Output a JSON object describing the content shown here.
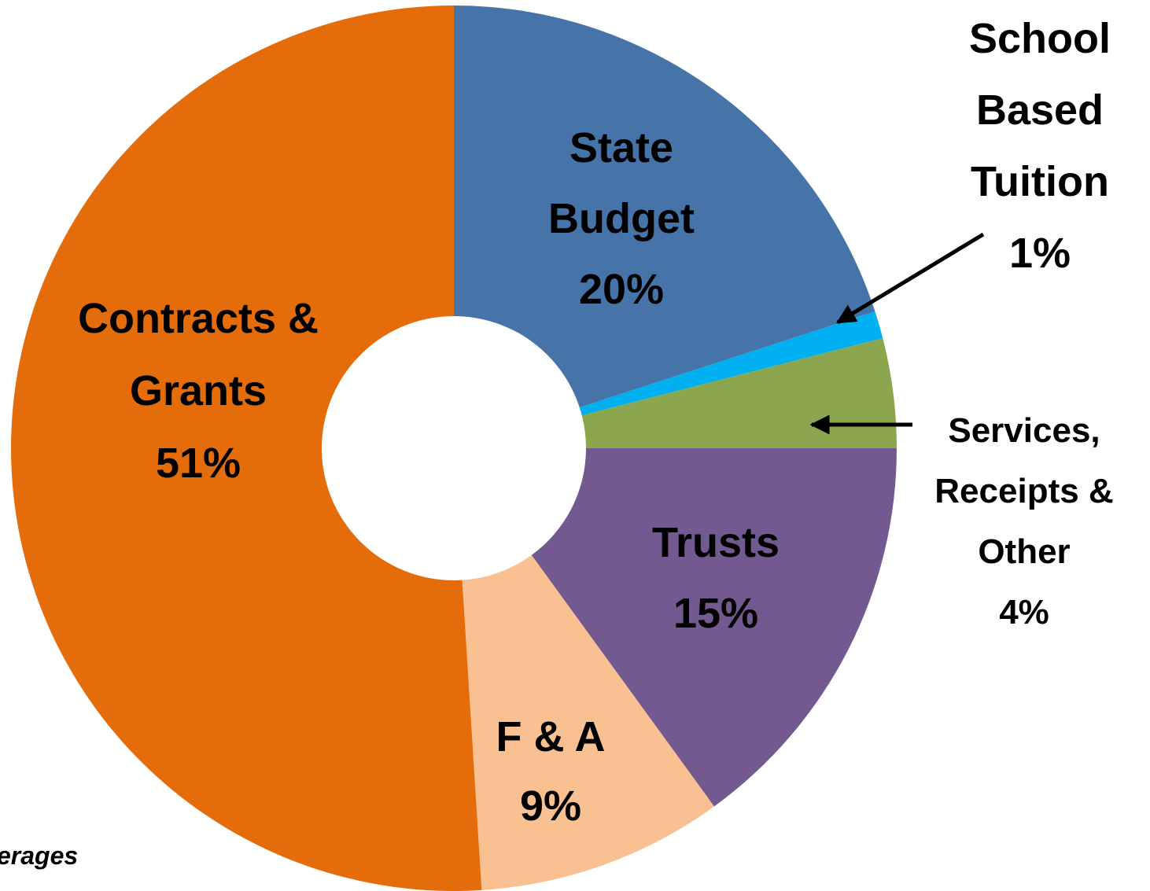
{
  "chart_data": {
    "type": "donut",
    "categories": [
      "State Budget",
      "School Based Tuition",
      "Services, Receipts & Other",
      "Trusts",
      "F & A",
      "Contracts & Grants"
    ],
    "values": [
      20,
      1,
      4,
      15,
      9,
      51
    ],
    "value_labels": [
      "20%",
      "1%",
      "4%",
      "15%",
      "9%",
      "51%"
    ],
    "colors": [
      "#4673a8",
      "#00b0f0",
      "#8ba64e",
      "#725a90",
      "#f9c092",
      "#e46c0a"
    ],
    "note": "erages"
  }
}
